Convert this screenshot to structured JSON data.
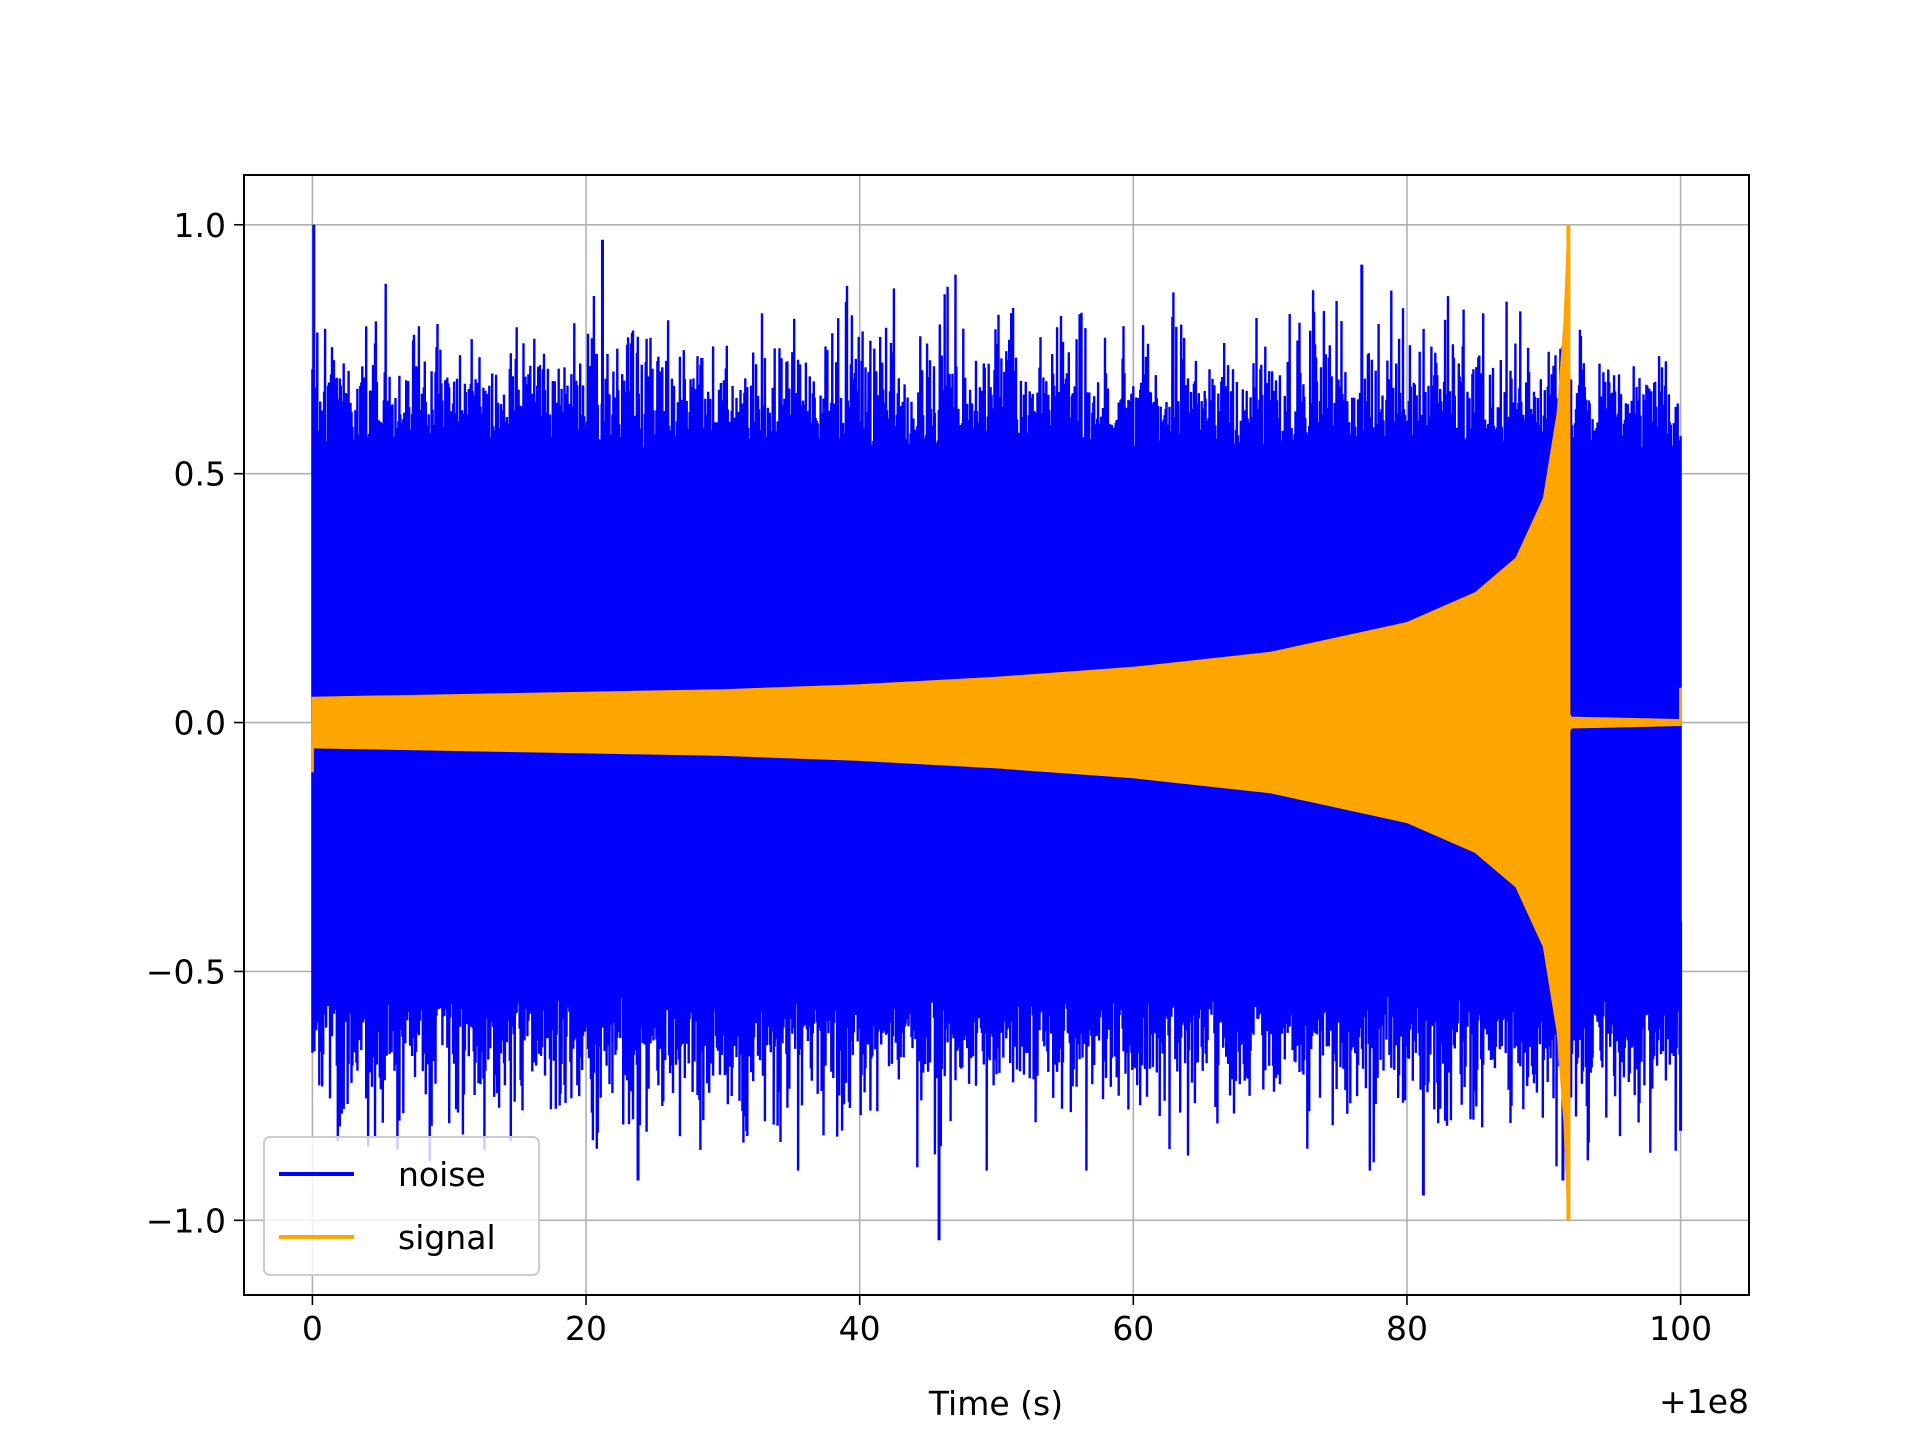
{
  "chart_data": {
    "type": "line",
    "title": "",
    "xlabel": "Time (s)",
    "ylabel": "",
    "x_offset_label": "+1e8",
    "xlim": [
      -5,
      105
    ],
    "ylim": [
      -1.15,
      1.1
    ],
    "x_ticks": [
      0,
      20,
      40,
      60,
      80,
      100
    ],
    "x_tick_labels": [
      "0",
      "20",
      "40",
      "60",
      "80",
      "100"
    ],
    "y_ticks": [
      -1.0,
      -0.5,
      0.0,
      0.5,
      1.0
    ],
    "y_tick_labels": [
      "−1.0",
      "−0.5",
      "0.0",
      "0.5",
      "1.0"
    ],
    "grid": true,
    "legend_position": "lower-left",
    "series": [
      {
        "name": "noise",
        "color": "#0000ff",
        "description_points": {
          "x_range": [
            0,
            100
          ],
          "typical_envelope": [
            -0.55,
            0.55
          ],
          "peaks_max": [
            [
              0.1,
              1.0
            ],
            [
              21.2,
              0.97
            ],
            [
              76.7,
              0.92
            ]
          ],
          "peaks_min": [
            [
              45.8,
              -1.04
            ],
            [
              23.8,
              -0.92
            ],
            [
              81.2,
              -0.95
            ],
            [
              91.4,
              -0.92
            ],
            [
              100,
              -0.82
            ]
          ]
        }
      },
      {
        "name": "signal",
        "color": "#ffa500",
        "envelope": [
          [
            0,
            0.05
          ],
          [
            10,
            0.055
          ],
          [
            20,
            0.06
          ],
          [
            30,
            0.065
          ],
          [
            40,
            0.075
          ],
          [
            50,
            0.09
          ],
          [
            60,
            0.11
          ],
          [
            70,
            0.14
          ],
          [
            80,
            0.2
          ],
          [
            85,
            0.26
          ],
          [
            88,
            0.33
          ],
          [
            90,
            0.45
          ],
          [
            91,
            0.62
          ],
          [
            91.5,
            0.8
          ],
          [
            91.8,
            1.0
          ]
        ],
        "post_merger": [
          [
            92.0,
            0.01
          ],
          [
            100,
            0.005
          ]
        ],
        "end_value": 0.07,
        "start_value": -0.1
      }
    ]
  }
}
